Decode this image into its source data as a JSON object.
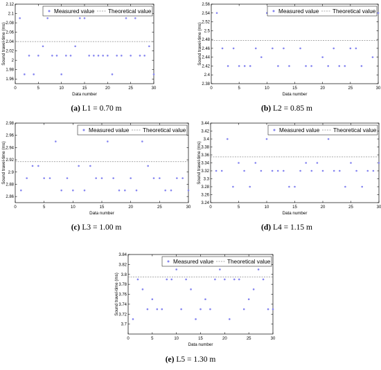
{
  "styles": {
    "point_color": "#8484f0",
    "theory_color": "#8c8c8c",
    "axis_color": "#000000"
  },
  "chart_data": [
    {
      "type": "scatter",
      "caption": {
        "label": "(a)",
        "text": "L1 = 0.70 m"
      },
      "xlabel": "Data number",
      "ylabel": "Sound travel-time (ms)",
      "xlim": [
        0,
        30
      ],
      "xticks": [
        0,
        5,
        10,
        15,
        20,
        25,
        30
      ],
      "ylim": [
        1.95,
        2.12
      ],
      "yticks": [
        "1.96",
        "1.98",
        "2",
        "2.02",
        "2.04",
        "2.06",
        "2.08",
        "2.1",
        "2.12"
      ],
      "legend": {
        "position": "top-right",
        "measured": "Measured value",
        "theoretical": "Theoretical value"
      },
      "theoretical": 2.04,
      "series": [
        {
          "name": "Measured value",
          "x": [
            1,
            2,
            3,
            4,
            5,
            6,
            7,
            8,
            9,
            10,
            11,
            12,
            13,
            14,
            15,
            16,
            17,
            18,
            19,
            20,
            21,
            22,
            23,
            24,
            25,
            26,
            27,
            28,
            29,
            30
          ],
          "y": [
            2.09,
            1.97,
            2.01,
            1.97,
            2.01,
            2.03,
            2.09,
            2.01,
            2.01,
            1.97,
            2.01,
            2.01,
            2.03,
            2.09,
            2.09,
            2.01,
            2.01,
            2.01,
            2.01,
            2.01,
            1.97,
            2.01,
            2.01,
            2.09,
            2.01,
            2.09,
            2.01,
            2.01,
            2.03,
            1.97
          ]
        }
      ]
    },
    {
      "type": "scatter",
      "caption": {
        "label": "(b)",
        "text": "L2 = 0.85 m"
      },
      "xlabel": "Data number",
      "ylabel": "Sound travel-time (ms)",
      "xlim": [
        0,
        30
      ],
      "xticks": [
        0,
        5,
        10,
        15,
        20,
        25,
        30
      ],
      "ylim": [
        2.38,
        2.56
      ],
      "yticks": [
        "2.38",
        "2.4",
        "2.42",
        "2.44",
        "2.46",
        "2.48",
        "2.5",
        "2.52",
        "2.54",
        "2.56"
      ],
      "legend": {
        "position": "top-right",
        "measured": "Measured value",
        "theoretical": "Theoretical value"
      },
      "theoretical": 2.478,
      "series": [
        {
          "name": "Measured value",
          "x": [
            1,
            2,
            3,
            4,
            5,
            6,
            7,
            8,
            9,
            10,
            11,
            12,
            13,
            14,
            15,
            16,
            17,
            18,
            19,
            20,
            21,
            22,
            23,
            24,
            25,
            26,
            27,
            28,
            29,
            30
          ],
          "y": [
            2.54,
            2.46,
            2.42,
            2.46,
            2.42,
            2.42,
            2.42,
            2.46,
            2.44,
            2.54,
            2.46,
            2.42,
            2.46,
            2.42,
            2.54,
            2.46,
            2.42,
            2.42,
            2.54,
            2.44,
            2.42,
            2.46,
            2.42,
            2.42,
            2.46,
            2.46,
            2.42,
            2.54,
            2.44,
            2.54
          ]
        }
      ]
    },
    {
      "type": "scatter",
      "caption": {
        "label": "(c)",
        "text": "L3 = 1.00 m"
      },
      "xlabel": "Data number",
      "ylabel": "Sound travel-time (ms)",
      "xlim": [
        0,
        30
      ],
      "xticks": [
        0,
        5,
        10,
        15,
        20,
        25,
        30
      ],
      "ylim": [
        2.85,
        2.98
      ],
      "yticks": [
        "2.86",
        "2.88",
        "2.9",
        "2.92",
        "2.94",
        "2.96",
        "2.98"
      ],
      "legend": {
        "position": "top-right",
        "measured": "Measured value",
        "theoretical": "Theoretical value"
      },
      "theoretical": 2.917,
      "series": [
        {
          "name": "Measured value",
          "x": [
            1,
            2,
            3,
            4,
            5,
            6,
            7,
            8,
            9,
            10,
            11,
            12,
            13,
            14,
            15,
            16,
            17,
            18,
            19,
            20,
            21,
            22,
            23,
            24,
            25,
            26,
            27,
            28,
            29,
            30
          ],
          "y": [
            2.87,
            2.89,
            2.91,
            2.91,
            2.89,
            2.89,
            2.95,
            2.87,
            2.89,
            2.87,
            2.91,
            2.87,
            2.91,
            2.89,
            2.89,
            2.95,
            2.89,
            2.87,
            2.87,
            2.89,
            2.87,
            2.95,
            2.91,
            2.89,
            2.89,
            2.87,
            2.87,
            2.89,
            2.89,
            2.87
          ]
        }
      ]
    },
    {
      "type": "scatter",
      "caption": {
        "label": "(d)",
        "text": "L4 = 1.15 m"
      },
      "xlabel": "Data number",
      "ylabel": "Sound travel-time (ms)",
      "xlim": [
        0,
        30
      ],
      "xticks": [
        0,
        5,
        10,
        15,
        20,
        25,
        30
      ],
      "ylim": [
        3.24,
        3.44
      ],
      "yticks": [
        "3.24",
        "3.26",
        "3.28",
        "3.3",
        "3.32",
        "3.34",
        "3.36",
        "3.38",
        "3.4",
        "3.42",
        "3.44"
      ],
      "legend": {
        "position": "top-right",
        "measured": "Measured value",
        "theoretical": "Theoretical value"
      },
      "theoretical": 3.355,
      "series": [
        {
          "name": "Measured value",
          "x": [
            1,
            2,
            3,
            4,
            5,
            6,
            7,
            8,
            9,
            10,
            11,
            12,
            13,
            14,
            15,
            16,
            17,
            18,
            19,
            20,
            21,
            22,
            23,
            24,
            25,
            26,
            27,
            28,
            29,
            30
          ],
          "y": [
            3.32,
            3.32,
            3.4,
            3.28,
            3.34,
            3.32,
            3.28,
            3.34,
            3.32,
            3.4,
            3.32,
            3.32,
            3.32,
            3.28,
            3.28,
            3.32,
            3.34,
            3.32,
            3.34,
            3.32,
            3.4,
            3.32,
            3.32,
            3.28,
            3.34,
            3.32,
            3.28,
            3.32,
            3.32,
            3.34
          ]
        }
      ]
    },
    {
      "type": "scatter",
      "caption": {
        "label": "(e)",
        "text": "L5 = 1.30 m"
      },
      "xlabel": "Data number",
      "ylabel": "Sound travel-time (ms)",
      "xlim": [
        0,
        30
      ],
      "xticks": [
        0,
        5,
        10,
        15,
        20,
        25,
        30
      ],
      "ylim": [
        3.68,
        3.84
      ],
      "yticks": [
        "3.7",
        "3.72",
        "3.74",
        "3.76",
        "3.78",
        "3.8",
        "3.82",
        "3.84"
      ],
      "legend": {
        "position": "top-right",
        "measured": "Measured value",
        "theoretical": "Theoretical value"
      },
      "theoretical": 3.795,
      "series": [
        {
          "name": "Measured value",
          "x": [
            1,
            2,
            3,
            4,
            5,
            6,
            7,
            8,
            9,
            10,
            11,
            12,
            13,
            14,
            15,
            16,
            17,
            18,
            19,
            20,
            21,
            22,
            23,
            24,
            25,
            26,
            27,
            28,
            29,
            30
          ],
          "y": [
            3.71,
            3.79,
            3.77,
            3.73,
            3.75,
            3.73,
            3.73,
            3.79,
            3.79,
            3.81,
            3.73,
            3.79,
            3.77,
            3.71,
            3.73,
            3.75,
            3.73,
            3.79,
            3.81,
            3.79,
            3.71,
            3.79,
            3.79,
            3.73,
            3.75,
            3.77,
            3.81,
            3.79,
            3.73,
            3.73
          ]
        }
      ]
    }
  ]
}
